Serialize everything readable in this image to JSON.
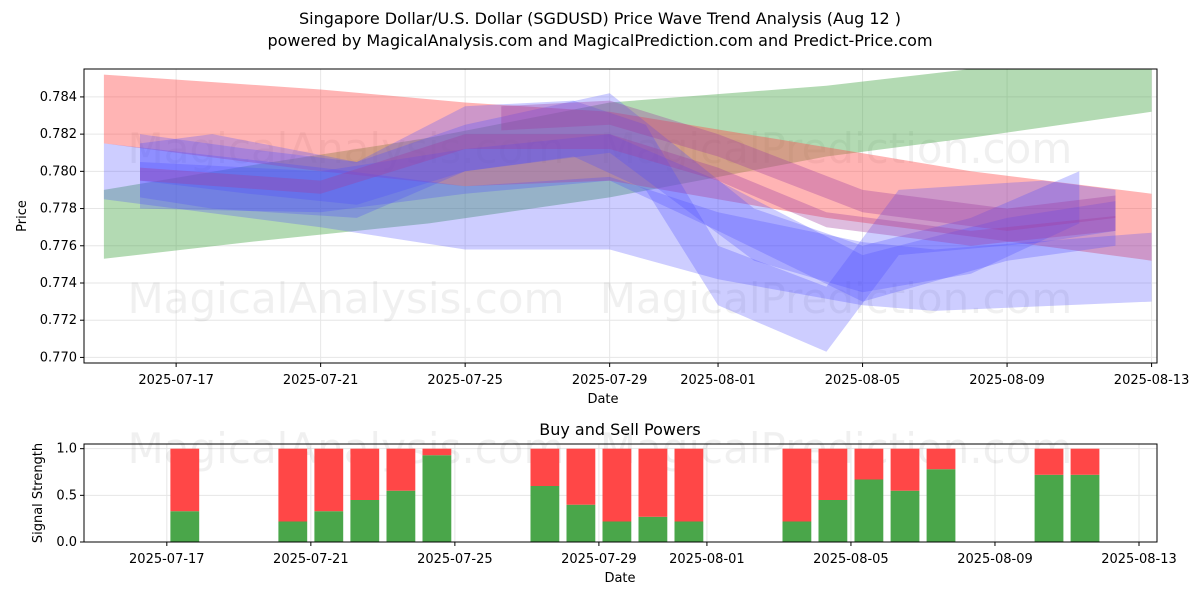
{
  "title_line1": "Singapore Dollar/U.S. Dollar (SGDUSD) Price Wave Trend Analysis (Aug 12 )",
  "title_line2": "powered by MagicalAnalysis.com and MagicalPrediction.com and Predict-Price.com",
  "watermarks": [
    "MagicalAnalysis.com",
    "MagicalPrediction.com"
  ],
  "colors": {
    "green_band": "#4aa64a",
    "red_band": "#ff4d4d",
    "blue_band": "#4d4dff",
    "purple_band": "#a040a0",
    "buy": "#4aa64a",
    "sell": "#ff4747"
  },
  "chart_data": [
    {
      "type": "area",
      "title": "",
      "xlabel": "Date",
      "ylabel": "Price",
      "grid": true,
      "ylim": [
        0.7697,
        0.7855
      ],
      "xlim": [
        "2025-07-15",
        "2025-08-13"
      ],
      "x_ticks": [
        "2025-07-17",
        "2025-07-21",
        "2025-07-25",
        "2025-07-29",
        "2025-08-01",
        "2025-08-05",
        "2025-08-09",
        "2025-08-13"
      ],
      "y_ticks": [
        0.77,
        0.772,
        0.774,
        0.776,
        0.778,
        0.78,
        0.782,
        0.784
      ],
      "y_tick_labels": [
        "0.770",
        "0.772",
        "0.774",
        "0.776",
        "0.778",
        "0.780",
        "0.782",
        "0.784"
      ],
      "series": [
        {
          "color": "green",
          "x": [
            "2025-07-15",
            "2025-07-19",
            "2025-07-24",
            "2025-07-29",
            "2025-08-04",
            "2025-08-08",
            "2025-08-13"
          ],
          "lower": [
            0.7753,
            0.7762,
            0.7772,
            0.7786,
            0.7808,
            0.7818,
            0.7832
          ],
          "upper": [
            0.779,
            0.7803,
            0.7818,
            0.7837,
            0.7846,
            0.7855,
            0.7855
          ]
        },
        {
          "color": "red",
          "x": [
            "2025-07-15",
            "2025-07-21",
            "2025-07-25",
            "2025-07-29",
            "2025-08-04",
            "2025-08-08",
            "2025-08-13"
          ],
          "lower": [
            0.7815,
            0.78,
            0.7792,
            0.7795,
            0.7775,
            0.7765,
            0.7752
          ],
          "upper": [
            0.7852,
            0.7844,
            0.7837,
            0.7832,
            0.7813,
            0.78,
            0.7788
          ]
        },
        {
          "color": "blue",
          "x": [
            "2025-07-15",
            "2025-07-21",
            "2025-07-25",
            "2025-07-29",
            "2025-08-01",
            "2025-08-05",
            "2025-08-07",
            "2025-08-13"
          ],
          "lower": [
            0.7785,
            0.777,
            0.7758,
            0.7758,
            0.7742,
            0.7728,
            0.7725,
            0.773
          ],
          "upper": [
            0.7815,
            0.7802,
            0.7792,
            0.7797,
            0.7778,
            0.7762,
            0.7758,
            0.7767
          ]
        },
        {
          "color": "blue",
          "x": [
            "2025-07-16",
            "2025-07-21",
            "2025-07-25",
            "2025-07-29",
            "2025-08-01",
            "2025-08-05",
            "2025-08-09",
            "2025-08-12"
          ],
          "lower": [
            0.778,
            0.7778,
            0.7788,
            0.7795,
            0.7768,
            0.773,
            0.7752,
            0.776
          ],
          "upper": [
            0.7805,
            0.78,
            0.7812,
            0.782,
            0.7795,
            0.7755,
            0.7775,
            0.7784
          ]
        },
        {
          "color": "blue",
          "x": [
            "2025-07-16",
            "2025-07-18",
            "2025-07-22",
            "2025-07-25",
            "2025-07-28",
            "2025-07-30",
            "2025-08-01",
            "2025-08-04",
            "2025-08-06",
            "2025-08-10",
            "2025-08-12"
          ],
          "lower": [
            0.7786,
            0.778,
            0.7775,
            0.78,
            0.7808,
            0.779,
            0.7728,
            0.7703,
            0.7755,
            0.7762,
            0.7768
          ],
          "upper": [
            0.7815,
            0.782,
            0.7805,
            0.7835,
            0.7838,
            0.7825,
            0.776,
            0.7738,
            0.779,
            0.7795,
            0.779
          ]
        },
        {
          "color": "blue",
          "x": [
            "2025-07-16",
            "2025-07-19",
            "2025-07-22",
            "2025-07-25",
            "2025-07-29",
            "2025-08-02",
            "2025-08-05",
            "2025-08-08",
            "2025-08-11"
          ],
          "lower": [
            0.7795,
            0.7788,
            0.7782,
            0.78,
            0.781,
            0.7752,
            0.7735,
            0.7745,
            0.7772
          ],
          "upper": [
            0.782,
            0.7812,
            0.7805,
            0.7825,
            0.7842,
            0.778,
            0.776,
            0.7775,
            0.78
          ]
        },
        {
          "color": "purple",
          "x": [
            "2025-07-16",
            "2025-07-21",
            "2025-07-25",
            "2025-07-29",
            "2025-08-01",
            "2025-08-04",
            "2025-08-08",
            "2025-08-12"
          ],
          "lower": [
            0.7795,
            0.7788,
            0.7812,
            0.7812,
            0.7795,
            0.777,
            0.776,
            0.7768
          ],
          "upper": [
            0.7802,
            0.7795,
            0.782,
            0.782,
            0.7802,
            0.7778,
            0.7768,
            0.7776
          ]
        },
        {
          "color": "purple",
          "x": [
            "2025-07-26",
            "2025-07-29",
            "2025-08-01",
            "2025-08-05",
            "2025-08-09",
            "2025-08-12"
          ],
          "lower": [
            0.7822,
            0.7825,
            0.7808,
            0.7778,
            0.7768,
            0.7775
          ],
          "upper": [
            0.7835,
            0.7838,
            0.782,
            0.779,
            0.778,
            0.7787
          ]
        }
      ]
    },
    {
      "type": "bar",
      "title": "Buy and Sell Powers",
      "xlabel": "Date",
      "ylabel": "Signal Strength",
      "ylim": [
        0,
        1.05
      ],
      "y_ticks": [
        0.0,
        0.5,
        1.0
      ],
      "y_tick_labels": [
        "0.0",
        "0.5",
        "1.0"
      ],
      "x_ticks": [
        "2025-07-17",
        "2025-07-21",
        "2025-07-25",
        "2025-07-29",
        "2025-08-01",
        "2025-08-05",
        "2025-08-09",
        "2025-08-13"
      ],
      "xlim": [
        "2025-07-15",
        "2025-08-13"
      ],
      "categories": [
        "2025-07-17",
        "2025-07-20",
        "2025-07-21",
        "2025-07-22",
        "2025-07-23",
        "2025-07-24",
        "2025-07-27",
        "2025-07-28",
        "2025-07-29",
        "2025-07-30",
        "2025-07-31",
        "2025-08-03",
        "2025-08-04",
        "2025-08-05",
        "2025-08-06",
        "2025-08-07",
        "2025-08-10",
        "2025-08-11"
      ],
      "series": [
        {
          "color": "green",
          "values": [
            0.33,
            0.22,
            0.33,
            0.45,
            0.55,
            0.93,
            0.6,
            0.4,
            0.22,
            0.27,
            0.22,
            0.22,
            0.45,
            0.67,
            0.55,
            0.78,
            0.72,
            0.72
          ]
        },
        {
          "color": "red",
          "values": [
            0.67,
            0.78,
            0.67,
            0.55,
            0.45,
            0.07,
            0.4,
            0.6,
            0.78,
            0.73,
            0.78,
            0.78,
            0.55,
            0.33,
            0.45,
            0.22,
            0.28,
            0.28
          ]
        }
      ]
    }
  ]
}
